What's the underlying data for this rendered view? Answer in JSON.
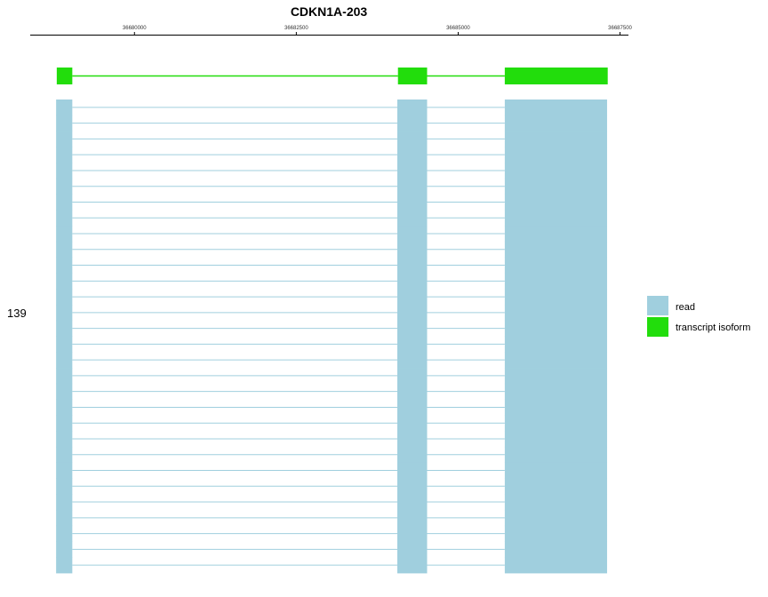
{
  "chart_data": {
    "type": "gene-track",
    "title": "CDKN1A-203",
    "x_ticks": [
      36680000,
      36682500,
      36685000,
      36687500
    ],
    "xlim": [
      36678390,
      36687630
    ],
    "read_count_label": "139",
    "transcript": {
      "name": "transcript isoform",
      "color": "#22dd0c",
      "exons": [
        [
          36678800,
          36679040
        ],
        [
          36684070,
          36684520
        ],
        [
          36685720,
          36687310
        ]
      ]
    },
    "reads": {
      "name": "read",
      "color": "#a0cfde",
      "count": 30,
      "exons": [
        [
          36678790,
          36679040
        ],
        [
          36684060,
          36684520
        ],
        [
          36685720,
          36687300
        ]
      ]
    },
    "legend": {
      "placement": "right",
      "entries": [
        {
          "label": "read",
          "color": "#a0cfde"
        },
        {
          "label": "transcript isoform",
          "color": "#22dd0c"
        }
      ]
    }
  }
}
